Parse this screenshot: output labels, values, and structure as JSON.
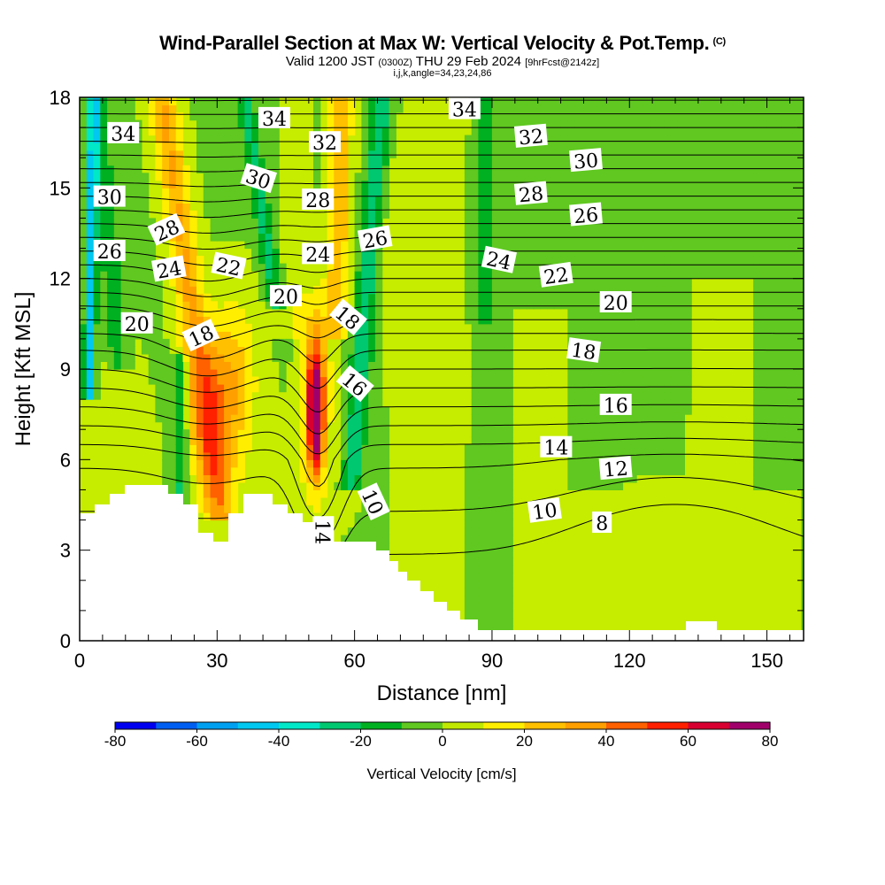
{
  "header": {
    "title": "Wind-Parallel Section at Max W: Vertical Velocity & Pot.Temp.",
    "copyright": "(C)",
    "valid_prefix": "Valid 1200 JST",
    "valid_utc": "(0300Z)",
    "valid_date": "THU 29 Feb 2024",
    "forecast": "[9hrFcst@2142z]",
    "params": "i,j,k,angle=34,23,24,86"
  },
  "chart_data": {
    "type": "heatmap",
    "xlabel": "Distance [nm]",
    "ylabel": "Height [Kft MSL]",
    "xlim": [
      0,
      158
    ],
    "ylim": [
      0,
      18
    ],
    "x_ticks": [
      "0",
      "30",
      "60",
      "90",
      "120",
      "150"
    ],
    "y_ticks": [
      "0",
      "3",
      "6",
      "9",
      "12",
      "15",
      "18"
    ],
    "colorbar": {
      "title": "Vertical Velocity [cm/s]",
      "tick_labels": [
        "-80",
        "-60",
        "-40",
        "-20",
        "0",
        "20",
        "40",
        "60",
        "80"
      ],
      "levels": [
        -80,
        -70,
        -60,
        -50,
        -40,
        -30,
        -20,
        -10,
        0,
        10,
        20,
        30,
        40,
        50,
        60,
        70,
        80
      ],
      "colors": [
        "#0000f0",
        "#005ff0",
        "#00a0f0",
        "#00c8f0",
        "#00e8c8",
        "#00c870",
        "#00b020",
        "#60c820",
        "#c0e800",
        "#ffee00",
        "#ffc000",
        "#ffa000",
        "#ff6000",
        "#ff2000",
        "#d80030",
        "#a0006a"
      ]
    },
    "contour_labels": [
      {
        "text": "34",
        "x": 9.5,
        "y": 16.8,
        "rot": 0
      },
      {
        "text": "30",
        "x": 6.5,
        "y": 14.7,
        "rot": 0
      },
      {
        "text": "26",
        "x": 6.5,
        "y": 12.9,
        "rot": 0
      },
      {
        "text": "20",
        "x": 12.5,
        "y": 10.5,
        "rot": 0
      },
      {
        "text": "28",
        "x": 19,
        "y": 13.6,
        "rot": -25
      },
      {
        "text": "24",
        "x": 19.5,
        "y": 12.3,
        "rot": -10
      },
      {
        "text": "18",
        "x": 26.5,
        "y": 10.1,
        "rot": -25
      },
      {
        "text": "22",
        "x": 32.5,
        "y": 12.4,
        "rot": 12
      },
      {
        "text": "34",
        "x": 42.5,
        "y": 17.3,
        "rot": 0
      },
      {
        "text": "30",
        "x": 39,
        "y": 15.3,
        "rot": 18
      },
      {
        "text": "20",
        "x": 45,
        "y": 11.4,
        "rot": 0
      },
      {
        "text": "32",
        "x": 53.5,
        "y": 16.5,
        "rot": 0
      },
      {
        "text": "28",
        "x": 52,
        "y": 14.6,
        "rot": 0
      },
      {
        "text": "24",
        "x": 52,
        "y": 12.8,
        "rot": 0
      },
      {
        "text": "18",
        "x": 58.5,
        "y": 10.7,
        "rot": 40
      },
      {
        "text": "16",
        "x": 60,
        "y": 8.5,
        "rot": 40
      },
      {
        "text": "14",
        "x": 53,
        "y": 3.6,
        "rot": 90
      },
      {
        "text": "26",
        "x": 64.5,
        "y": 13.3,
        "rot": -10
      },
      {
        "text": "10",
        "x": 64,
        "y": 4.6,
        "rot": 65
      },
      {
        "text": "34",
        "x": 84,
        "y": 17.6,
        "rot": 0
      },
      {
        "text": "24",
        "x": 91.5,
        "y": 12.6,
        "rot": 12
      },
      {
        "text": "32",
        "x": 98.5,
        "y": 16.7,
        "rot": -5
      },
      {
        "text": "28",
        "x": 98.5,
        "y": 14.8,
        "rot": -5
      },
      {
        "text": "22",
        "x": 104,
        "y": 12.1,
        "rot": -8
      },
      {
        "text": "30",
        "x": 110.5,
        "y": 15.9,
        "rot": -5
      },
      {
        "text": "26",
        "x": 110.5,
        "y": 14.1,
        "rot": -5
      },
      {
        "text": "20",
        "x": 117,
        "y": 11.2,
        "rot": 0
      },
      {
        "text": "18",
        "x": 110,
        "y": 9.6,
        "rot": 8
      },
      {
        "text": "16",
        "x": 117,
        "y": 7.8,
        "rot": 0
      },
      {
        "text": "14",
        "x": 104,
        "y": 6.4,
        "rot": 0
      },
      {
        "text": "12",
        "x": 117,
        "y": 5.7,
        "rot": -5
      },
      {
        "text": "10",
        "x": 101.5,
        "y": 4.3,
        "rot": -8
      },
      {
        "text": "8",
        "x": 114,
        "y": 3.9,
        "rot": 0
      }
    ]
  }
}
